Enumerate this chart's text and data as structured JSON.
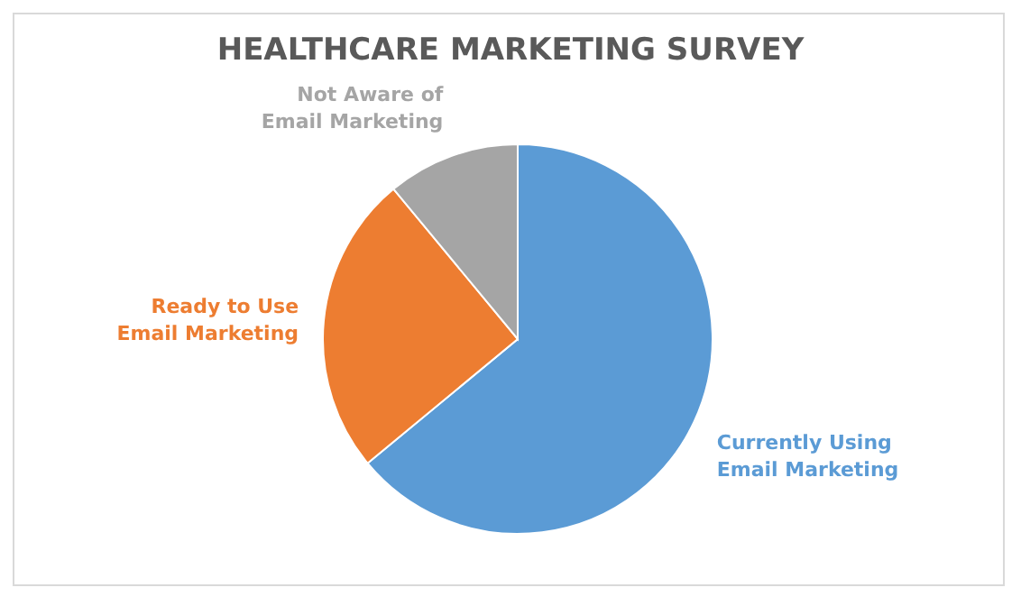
{
  "chart_data": {
    "type": "pie",
    "title": "HEALTHCARE MARKETING SURVEY",
    "categories": [
      "Currently Using Email Marketing",
      "Ready to Use Email Marketing",
      "Not Aware of Email Marketing"
    ],
    "values": [
      64,
      25,
      11
    ],
    "colors": [
      "#5b9bd5",
      "#ed7d31",
      "#a5a5a5"
    ],
    "legend": false
  }
}
